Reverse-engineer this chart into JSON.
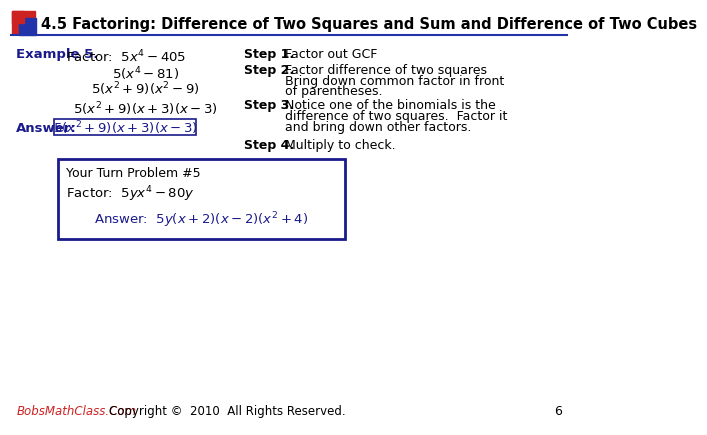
{
  "title": "4.5 Factoring: Difference of Two Squares and Sum and Difference of Two Cubes",
  "dark_blue": "#1a1a8c",
  "example_label": "Example 5.",
  "example_problem": "Factor:  $5x^4 - 405$",
  "step1_label": "Step 1.",
  "step1_text": "Factor out GCF",
  "step2_label": "Step 2.",
  "step2_lines": [
    "Factor difference of two squares",
    "Bring down common factor in front",
    "of parentheses."
  ],
  "step3_label": "Step 3.",
  "step3_lines": [
    "Notice one of the binomials is the",
    "difference of two squares.  Factor it",
    "and bring down other factors."
  ],
  "step4_label": "Step 4.",
  "step4_text": "Multiply to check.",
  "expr1": "$5(x^4 - 81)$",
  "expr2": "$5(x^2 + 9)(x^2 - 9)$",
  "expr3": "$5(x^2 + 9)(x + 3)(x - 3)$",
  "answer_label": "Answer:",
  "answer_expr": "$5(x^2 + 9)(x + 3)(x - 3)$",
  "your_turn_label": "Your Turn Problem #5",
  "your_turn_problem": "Factor:  $5yx^4 - 80y$",
  "your_turn_answer": "Answer:  $5y(x + 2)(x - 2)(x^2 + 4)$",
  "footer_left_italic": "BobsMathClass",
  "footer_left_bold": ".",
  "footer_left_rest": "Com",
  "footer_right": "Copyright ©  2010  All Rights Reserved.",
  "page_num": "6",
  "box_color": "#1a1a8c",
  "bg_color": "#ffffff",
  "red": "#cc2222",
  "blue_header": "#2233aa"
}
